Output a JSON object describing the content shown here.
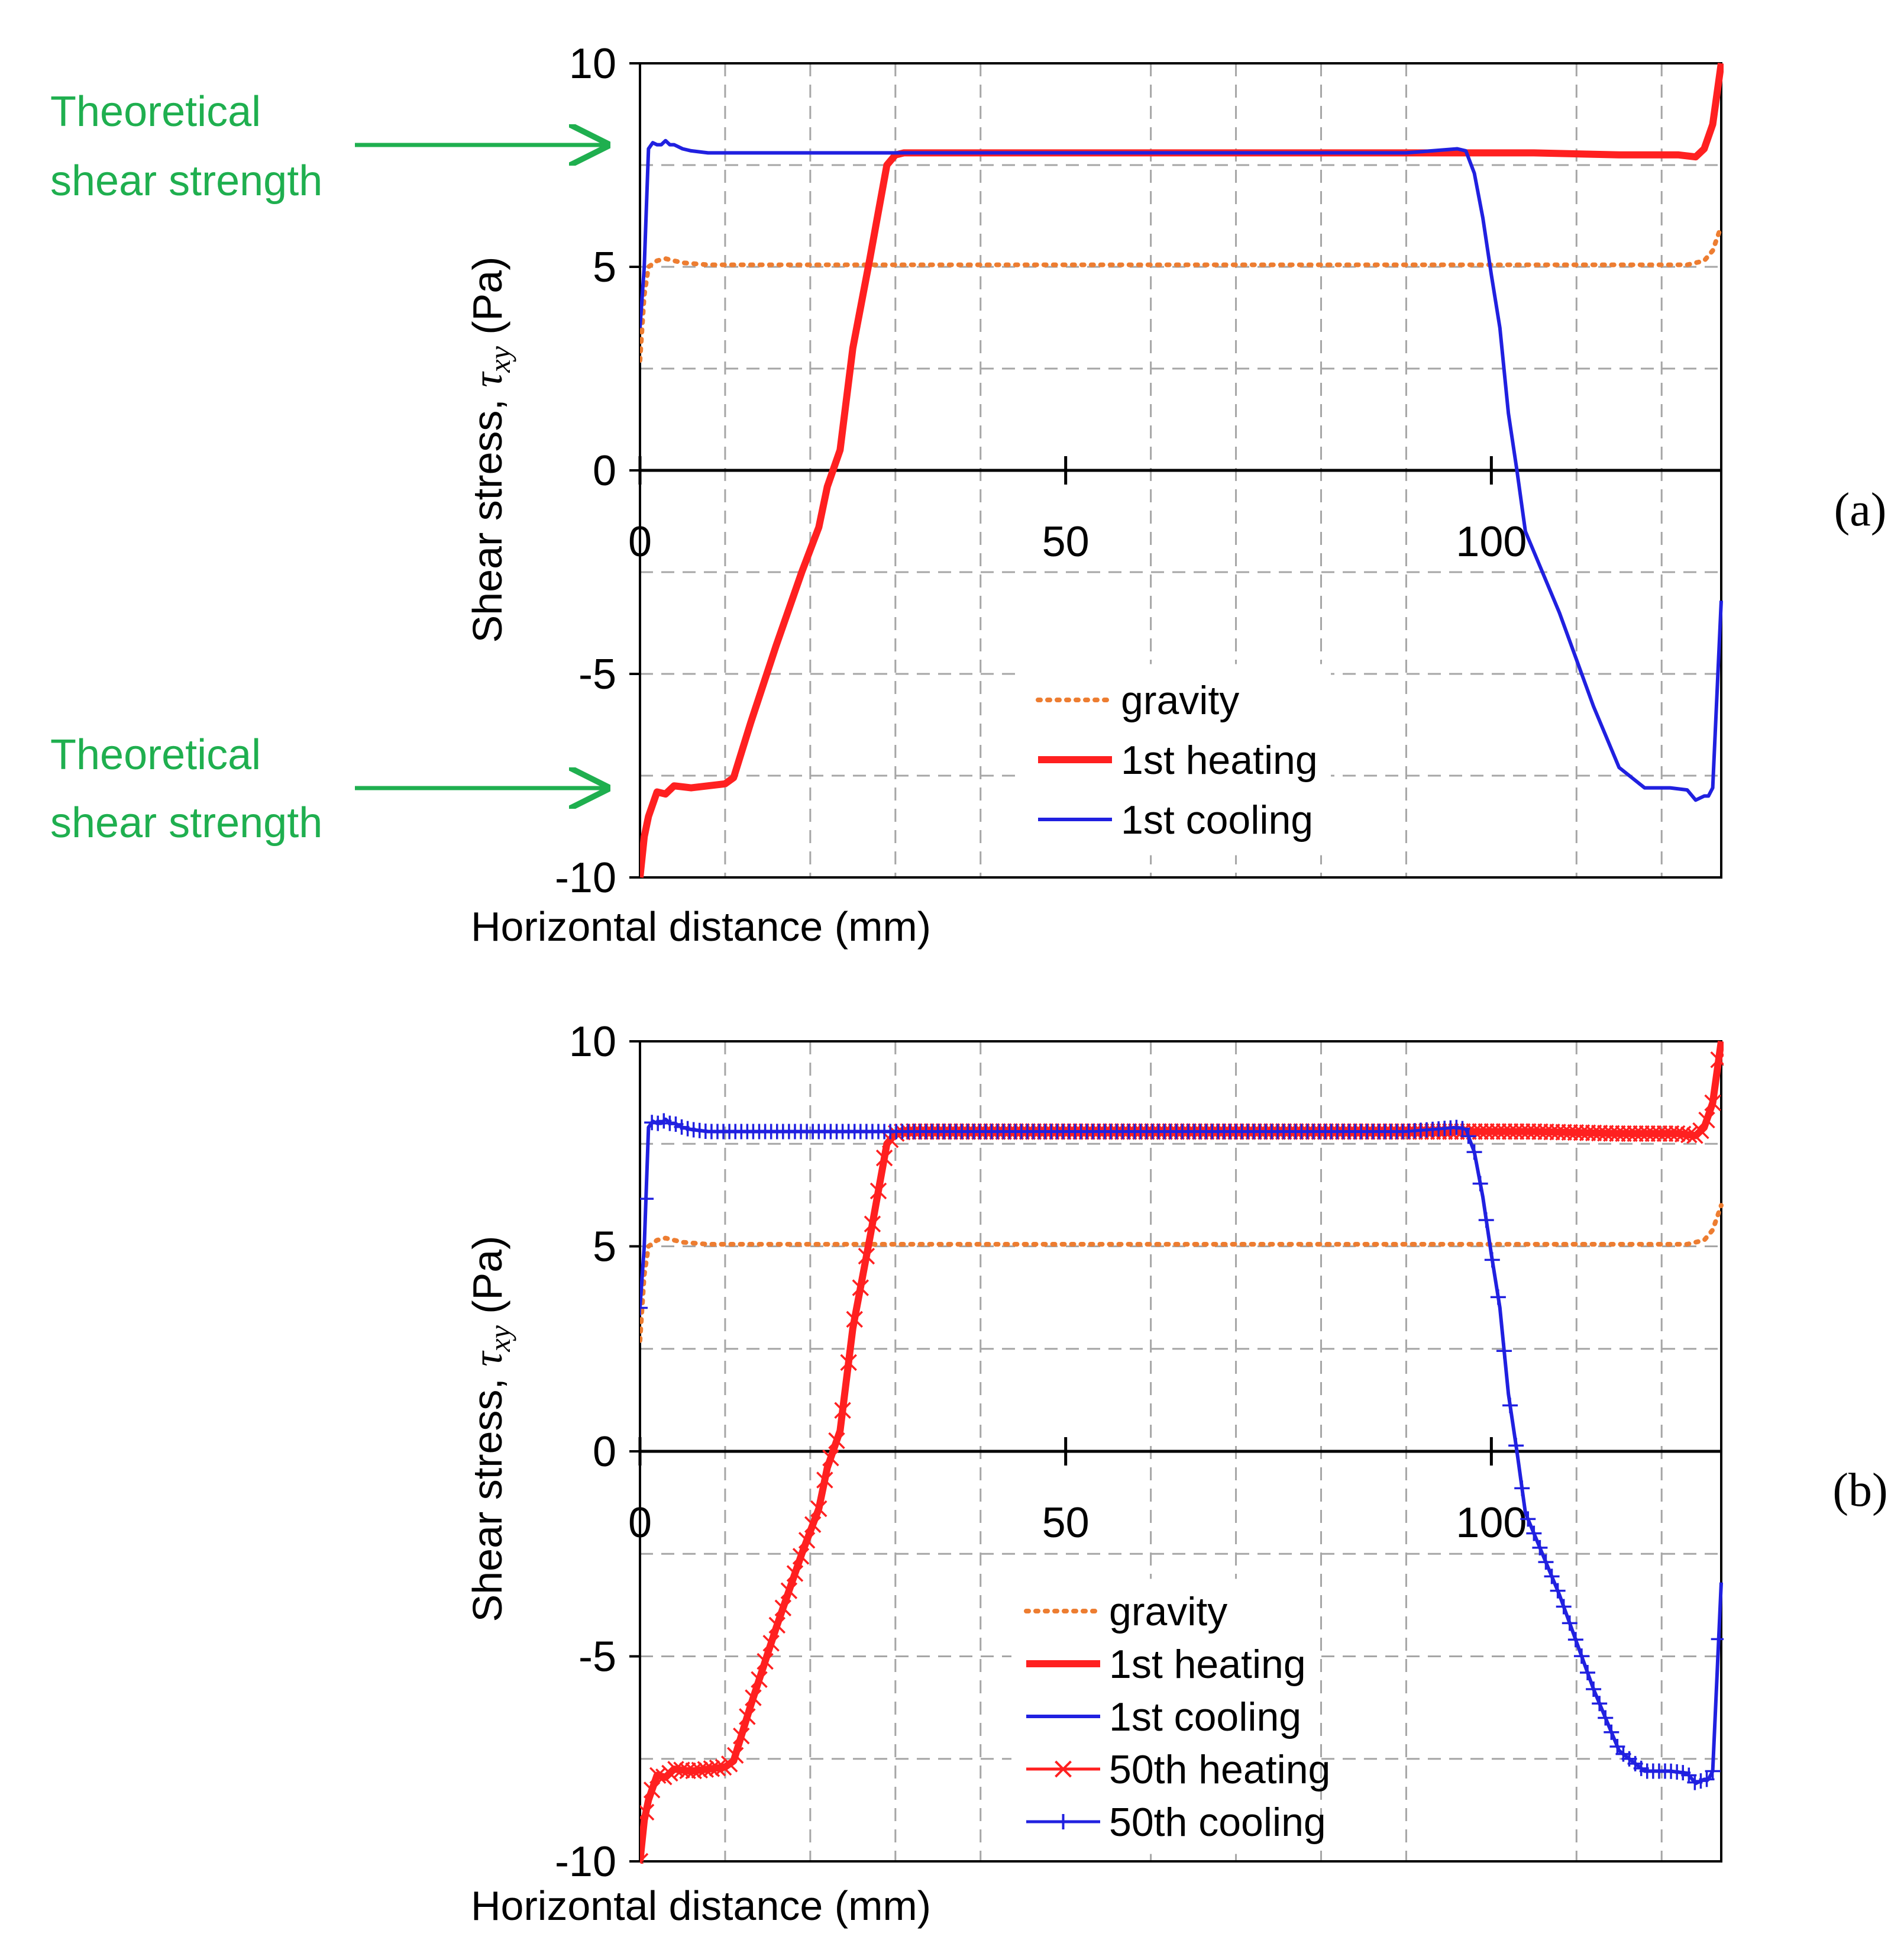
{
  "colors": {
    "gravity": "#ED7D31",
    "heating": "#FF2020",
    "cooling": "#2020E0",
    "annotation": "#1FAF4F",
    "grid": "#A6A6A6",
    "axis": "#000000"
  },
  "annotations": {
    "theoretical_line1": "Theoretical",
    "theoretical_line2": "shear strength"
  },
  "chart_data": [
    {
      "type": "line",
      "panel_label": "(a)",
      "xlabel": "Horizontal distance (mm)",
      "ylabel_main": "Shear stress, ",
      "ylabel_symbol": "τ",
      "ylabel_sub": "xy",
      "ylabel_unit": " (Pa)",
      "xlim": [
        0,
        127
      ],
      "ylim": [
        -10,
        10
      ],
      "xticks": [
        0,
        50,
        100
      ],
      "yticks": [
        -10,
        -5,
        0,
        5,
        10
      ],
      "xtick_labels": [
        "0",
        "50",
        "100"
      ],
      "ytick_labels": [
        "-10",
        "-5",
        "0",
        "5",
        "10"
      ],
      "grid": true,
      "legend_position": "bottom-center",
      "series": [
        {
          "name": "gravity",
          "style": "dotted",
          "color": "#ED7D31",
          "x": [
            0,
            0.5,
            1,
            2,
            3,
            4,
            5,
            8,
            15,
            30,
            60,
            90,
            110,
            120,
            123,
            125,
            126,
            127
          ],
          "y": [
            2.7,
            4.3,
            5.0,
            5.15,
            5.2,
            5.15,
            5.1,
            5.05,
            5.05,
            5.05,
            5.05,
            5.05,
            5.05,
            5.05,
            5.05,
            5.15,
            5.4,
            6.0
          ]
        },
        {
          "name": "1st heating",
          "style": "thick",
          "color": "#FF2020",
          "x": [
            0,
            0.5,
            1,
            2,
            3,
            4,
            6,
            8,
            10,
            11,
            13,
            16,
            19,
            21,
            22,
            23.5,
            25,
            27,
            29,
            30,
            31,
            40,
            60,
            80,
            97,
            105,
            115,
            122,
            124,
            125,
            126,
            127
          ],
          "y": [
            -10,
            -9.0,
            -8.5,
            -7.9,
            -7.95,
            -7.75,
            -7.8,
            -7.75,
            -7.7,
            -7.55,
            -6.2,
            -4.3,
            -2.5,
            -1.4,
            -0.4,
            0.5,
            3.0,
            5.2,
            7.5,
            7.75,
            7.8,
            7.8,
            7.8,
            7.8,
            7.8,
            7.8,
            7.75,
            7.75,
            7.7,
            7.9,
            8.5,
            10
          ]
        },
        {
          "name": "1st cooling",
          "style": "thin",
          "color": "#2020E0",
          "x": [
            0,
            0.5,
            1,
            1.5,
            2,
            2.5,
            3,
            3.5,
            4,
            5,
            6,
            8,
            15,
            30,
            60,
            90,
            96,
            97,
            98,
            99,
            100,
            101,
            102,
            103,
            104,
            108,
            112,
            115,
            118,
            121,
            123,
            124,
            125,
            125.5,
            126,
            126.5,
            127
          ],
          "y": [
            3.5,
            5.0,
            7.9,
            8.05,
            8.0,
            8.0,
            8.1,
            8.0,
            8.0,
            7.9,
            7.85,
            7.8,
            7.8,
            7.8,
            7.8,
            7.8,
            7.9,
            7.85,
            7.3,
            6.2,
            4.8,
            3.5,
            1.4,
            0.0,
            -1.5,
            -3.5,
            -5.8,
            -7.3,
            -7.8,
            -7.8,
            -7.85,
            -8.1,
            -8.0,
            -8.0,
            -7.8,
            -5.5,
            -3.2
          ]
        }
      ]
    },
    {
      "type": "line",
      "panel_label": "(b)",
      "xlabel": "Horizontal distance (mm)",
      "ylabel_main": "Shear stress, ",
      "ylabel_symbol": "τ",
      "ylabel_sub": "xy",
      "ylabel_unit": " (Pa)",
      "xlim": [
        0,
        127
      ],
      "ylim": [
        -10,
        10
      ],
      "xticks": [
        0,
        50,
        100
      ],
      "yticks": [
        -10,
        -5,
        0,
        5,
        10
      ],
      "xtick_labels": [
        "0",
        "50",
        "100"
      ],
      "ytick_labels": [
        "-10",
        "-5",
        "0",
        "5",
        "10"
      ],
      "grid": true,
      "legend_position": "bottom-center",
      "series": [
        {
          "name": "gravity",
          "style": "dotted",
          "color": "#ED7D31",
          "x": [
            0,
            0.5,
            1,
            2,
            3,
            4,
            5,
            8,
            15,
            30,
            60,
            90,
            110,
            120,
            123,
            125,
            126,
            127
          ],
          "y": [
            2.7,
            4.3,
            5.0,
            5.15,
            5.2,
            5.15,
            5.1,
            5.05,
            5.05,
            5.05,
            5.05,
            5.05,
            5.05,
            5.05,
            5.05,
            5.15,
            5.4,
            6.0
          ]
        },
        {
          "name": "1st heating",
          "style": "thick",
          "color": "#FF2020",
          "x": [
            0,
            0.5,
            1,
            2,
            3,
            4,
            6,
            8,
            10,
            11,
            13,
            16,
            19,
            21,
            22,
            23.5,
            25,
            27,
            29,
            30,
            31,
            40,
            60,
            80,
            97,
            105,
            115,
            122,
            124,
            125,
            126,
            127
          ],
          "y": [
            -10,
            -9.0,
            -8.5,
            -7.9,
            -7.95,
            -7.75,
            -7.8,
            -7.75,
            -7.7,
            -7.55,
            -6.2,
            -4.3,
            -2.5,
            -1.4,
            -0.4,
            0.5,
            3.0,
            5.2,
            7.5,
            7.75,
            7.8,
            7.8,
            7.8,
            7.8,
            7.8,
            7.8,
            7.75,
            7.75,
            7.7,
            7.9,
            8.5,
            10
          ]
        },
        {
          "name": "1st cooling",
          "style": "thin",
          "color": "#2020E0",
          "x": [
            0,
            0.5,
            1,
            1.5,
            2,
            2.5,
            3,
            3.5,
            4,
            5,
            6,
            8,
            15,
            30,
            60,
            90,
            96,
            97,
            98,
            99,
            100,
            101,
            102,
            103,
            104,
            108,
            112,
            115,
            118,
            121,
            123,
            124,
            125,
            125.5,
            126,
            126.5,
            127
          ],
          "y": [
            3.5,
            5.0,
            7.9,
            8.05,
            8.0,
            8.0,
            8.1,
            8.0,
            8.0,
            7.9,
            7.85,
            7.8,
            7.8,
            7.8,
            7.8,
            7.8,
            7.9,
            7.85,
            7.3,
            6.2,
            4.8,
            3.5,
            1.4,
            0.0,
            -1.5,
            -3.5,
            -5.8,
            -7.3,
            -7.8,
            -7.8,
            -7.85,
            -8.1,
            -8.0,
            -8.0,
            -7.8,
            -5.5,
            -3.2
          ]
        },
        {
          "name": "50th heating",
          "style": "marker-x",
          "color": "#FF2020",
          "x": [
            0,
            0.5,
            1,
            2,
            3,
            4,
            6,
            8,
            10,
            11,
            13,
            16,
            19,
            21,
            22,
            23.5,
            25,
            27,
            29,
            30,
            31,
            40,
            60,
            80,
            97,
            105,
            115,
            122,
            124,
            125,
            126,
            127
          ],
          "y": [
            -10,
            -9.0,
            -8.5,
            -7.9,
            -7.95,
            -7.75,
            -7.8,
            -7.75,
            -7.7,
            -7.55,
            -6.2,
            -4.3,
            -2.5,
            -1.4,
            -0.4,
            0.5,
            3.0,
            5.2,
            7.5,
            7.75,
            7.8,
            7.8,
            7.8,
            7.8,
            7.8,
            7.8,
            7.75,
            7.75,
            7.7,
            7.9,
            8.5,
            10
          ],
          "marker_step_x": 0.7
        },
        {
          "name": "50th cooling",
          "style": "marker-plus",
          "color": "#2020E0",
          "x": [
            0,
            0.5,
            1,
            1.5,
            2,
            2.5,
            3,
            3.5,
            4,
            5,
            6,
            8,
            15,
            30,
            60,
            90,
            96,
            97,
            98,
            99,
            100,
            101,
            102,
            103,
            104,
            108,
            112,
            115,
            118,
            121,
            123,
            124,
            125,
            125.5,
            126,
            126.5,
            127
          ],
          "y": [
            3.5,
            5.0,
            7.9,
            8.05,
            8.0,
            8.0,
            8.1,
            8.0,
            8.0,
            7.9,
            7.85,
            7.8,
            7.8,
            7.8,
            7.8,
            7.8,
            7.9,
            7.85,
            7.3,
            6.2,
            4.8,
            3.5,
            1.4,
            0.0,
            -1.5,
            -3.5,
            -5.8,
            -7.3,
            -7.8,
            -7.8,
            -7.85,
            -8.1,
            -8.0,
            -8.0,
            -7.8,
            -5.5,
            -3.2
          ],
          "marker_step_x": 0.7
        }
      ]
    }
  ]
}
